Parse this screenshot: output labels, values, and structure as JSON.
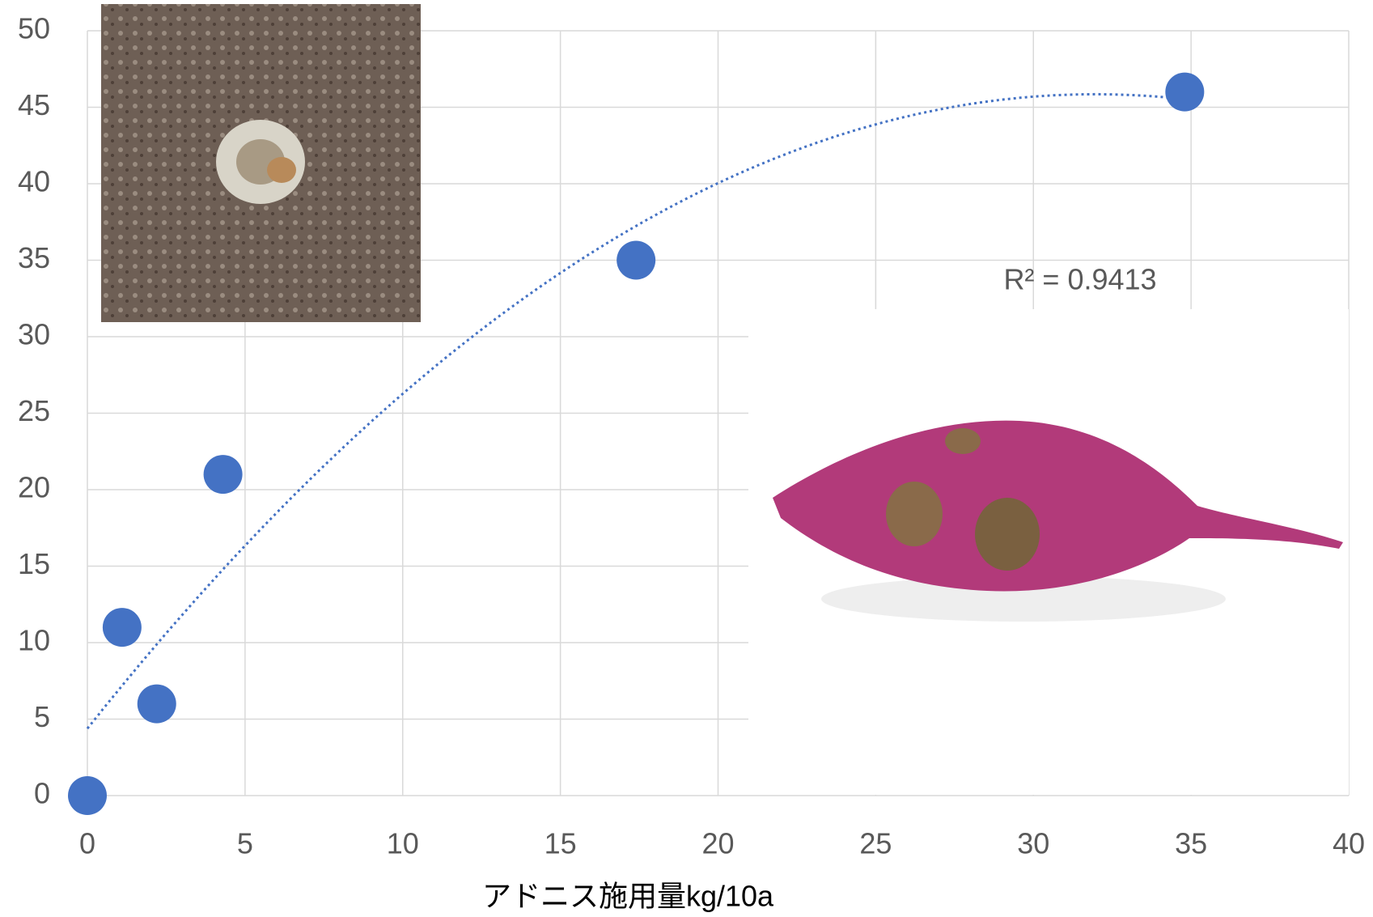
{
  "chart_data": {
    "type": "scatter",
    "x": [
      0,
      1.1,
      2.2,
      4.3,
      17.4,
      34.8
    ],
    "values": [
      0,
      11,
      6,
      21,
      35,
      46
    ],
    "color": "#4472c4",
    "xlabel": "アドニス施用量kg/10a",
    "xlim": [
      0,
      40
    ],
    "xticks": [
      0,
      5,
      10,
      15,
      20,
      25,
      30,
      35,
      40
    ],
    "ylim": [
      0,
      50
    ],
    "yticks": [
      0,
      5,
      10,
      15,
      20,
      25,
      30,
      35,
      40,
      45,
      50
    ],
    "grid": true,
    "trendline": {
      "type": "polynomial",
      "order": 2,
      "annotation": "R² = 0.9413"
    }
  }
}
